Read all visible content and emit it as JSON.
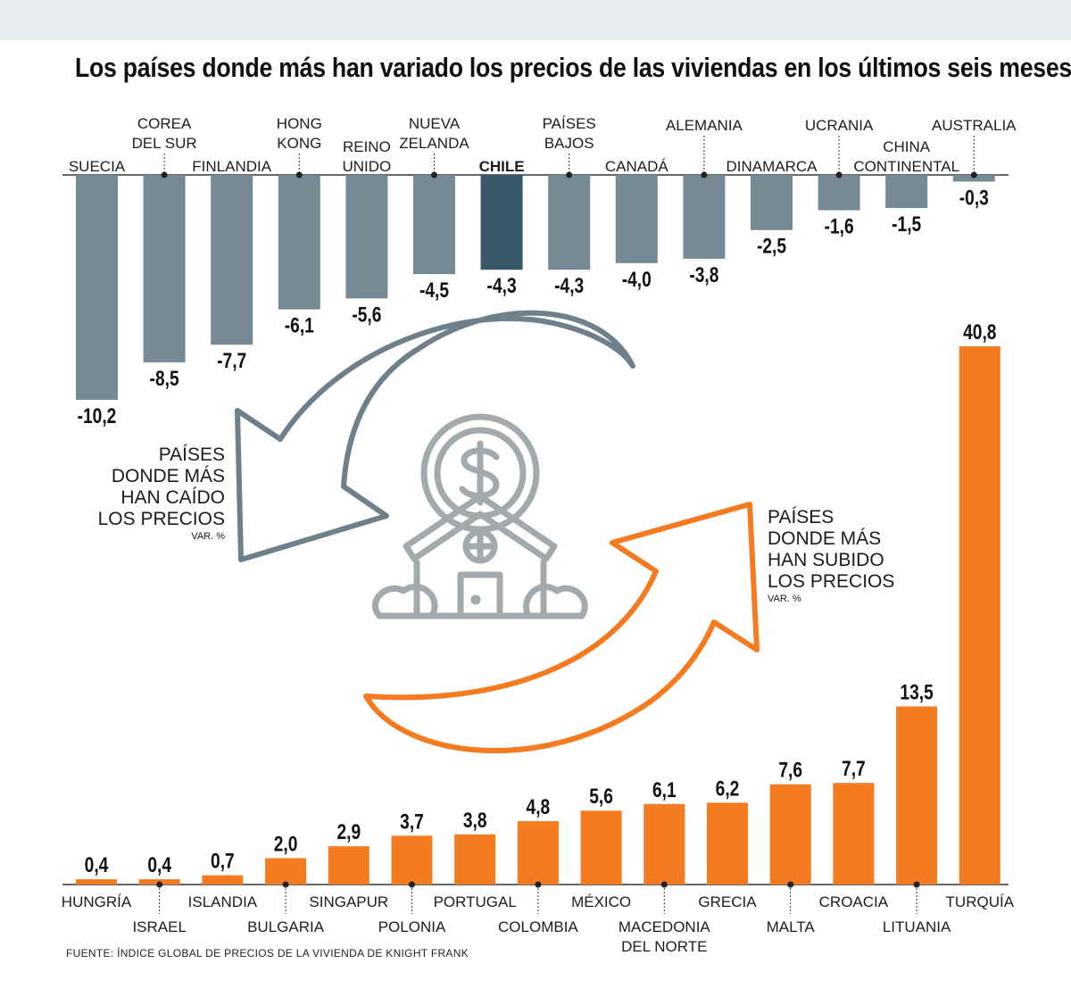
{
  "title": "Los países donde más han variado los precios de las viviendas en los últimos seis meses",
  "source": "FUENTE: ÍNDICE GLOBAL DE PRECIOS DE LA VIVIENDA DE KNIGHT FRANK",
  "callouts": {
    "falling": {
      "lines": [
        "PAÍSES",
        "DONDE MÁS",
        "HAN CAÍDO",
        "LOS PRECIOS"
      ],
      "unit": "VAR. %"
    },
    "rising": {
      "lines": [
        "PAÍSES",
        "DONDE MÁS",
        "HAN SUBIDO",
        "LOS PRECIOS"
      ],
      "unit": "VAR. %"
    }
  },
  "icon": "house-with-dollar-coin-icon",
  "colors": {
    "negative": "#768a96",
    "highlight": "#375869",
    "positive": "#f47b20",
    "arrow_grey": "#6e808b",
    "arrow_orange": "#f47b20",
    "icon": "#a3aaad"
  },
  "chart_data": [
    {
      "type": "bar",
      "title": "PAÍSES DONDE MÁS HAN CAÍDO LOS PRECIOS",
      "unit": "VAR. %",
      "categories": [
        "SUECIA",
        "COREA DEL SUR",
        "FINLANDIA",
        "HONG KONG",
        "REINO UNIDO",
        "NUEVA ZELANDA",
        "CHILE",
        "PAÍSES BAJOS",
        "CANADÁ",
        "ALEMANIA",
        "DINAMARCA",
        "UCRANIA",
        "CHINA CONTINENTAL",
        "AUSTRALIA"
      ],
      "label_lines": [
        [
          "SUECIA"
        ],
        [
          "COREA",
          "DEL SUR"
        ],
        [
          "FINLANDIA"
        ],
        [
          "HONG",
          "KONG"
        ],
        [
          "REINO",
          "UNIDO"
        ],
        [
          "NUEVA",
          "ZELANDA"
        ],
        [
          "CHILE"
        ],
        [
          "PAÍSES",
          "BAJOS"
        ],
        [
          "CANADÁ"
        ],
        [
          "ALEMANIA"
        ],
        [
          "DINAMARCA"
        ],
        [
          "UCRANIA"
        ],
        [
          "CHINA",
          "CONTINENTAL"
        ],
        [
          "AUSTRALIA"
        ]
      ],
      "values": [
        -10.2,
        -8.5,
        -7.7,
        -6.1,
        -5.6,
        -4.5,
        -4.3,
        -4.3,
        -4.0,
        -3.8,
        -2.5,
        -1.6,
        -1.5,
        -0.3
      ],
      "value_labels": [
        "-10,2",
        "-8,5",
        "-7,7",
        "-6,1",
        "-5,6",
        "-4,5",
        "-4,3",
        "-4,3",
        "-4,0",
        "-3,8",
        "-2,5",
        "-1,6",
        "-1,5",
        "-0,3"
      ],
      "highlight": "CHILE"
    },
    {
      "type": "bar",
      "title": "PAÍSES DONDE MÁS HAN SUBIDO LOS PRECIOS",
      "unit": "VAR. %",
      "categories": [
        "HUNGRÍA",
        "ISRAEL",
        "ISLANDIA",
        "BULGARIA",
        "SINGAPUR",
        "POLONIA",
        "PORTUGAL",
        "COLOMBIA",
        "MÉXICO",
        "MACEDONIA DEL NORTE",
        "GRECIA",
        "MALTA",
        "CROACIA",
        "LITUANIA",
        "TURQUÍA"
      ],
      "label_lines": [
        [
          "HUNGRÍA"
        ],
        [
          "ISRAEL"
        ],
        [
          "ISLANDIA"
        ],
        [
          "BULGARIA"
        ],
        [
          "SINGAPUR"
        ],
        [
          "POLONIA"
        ],
        [
          "PORTUGAL"
        ],
        [
          "COLOMBIA"
        ],
        [
          "MÉXICO"
        ],
        [
          "MACEDONIA",
          "DEL NORTE"
        ],
        [
          "GRECIA"
        ],
        [
          "MALTA"
        ],
        [
          "CROACIA"
        ],
        [
          "LITUANIA"
        ],
        [
          "TURQUÍA"
        ]
      ],
      "values": [
        0.4,
        0.4,
        0.7,
        2.0,
        2.9,
        3.7,
        3.8,
        4.8,
        5.6,
        6.1,
        6.2,
        7.6,
        7.7,
        13.5,
        40.8
      ],
      "value_labels": [
        "0,4",
        "0,4",
        "0,7",
        "2,0",
        "2,9",
        "3,7",
        "3,8",
        "4,8",
        "5,6",
        "6,1",
        "6,2",
        "7,6",
        "7,7",
        "13,5",
        "40,8"
      ]
    }
  ]
}
